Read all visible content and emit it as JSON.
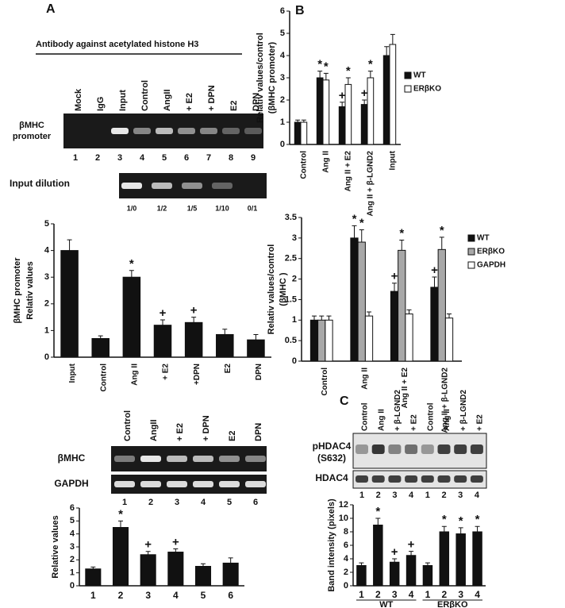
{
  "figure": {
    "panel_labels": [
      "A",
      "B",
      "C"
    ],
    "a_heading": "Antibody against acetylated histone H3",
    "a_chip": {
      "lanes": [
        "Mock",
        "IgG",
        "Input",
        "Control",
        "AngII",
        "+ E2",
        "+ DPN",
        "E2",
        "DPN"
      ],
      "row_label": [
        "βMHC",
        "promoter"
      ],
      "lane_numbers": [
        1,
        2,
        3,
        4,
        5,
        6,
        7,
        8,
        9
      ]
    },
    "a_input": {
      "row_label": "Input dilution",
      "dilutions": [
        "1/0",
        "1/2",
        "1/5",
        "1/10",
        "0/1"
      ]
    },
    "a_rt": {
      "lanes": [
        "Control",
        "AngII",
        "+ E2",
        "+ DPN",
        "E2",
        "DPN"
      ],
      "rows": [
        "βMHC",
        "GAPDH"
      ],
      "lane_numbers": [
        1,
        2,
        3,
        4,
        5,
        6
      ]
    },
    "c_blot": {
      "lanes": [
        "Control",
        "Ang II",
        "+ β-LGND2",
        "+ E2",
        "Control",
        "Ang II",
        "+ β-LGND2",
        "+ E2"
      ],
      "rows": [
        [
          "pHDAC4",
          "(S632)"
        ],
        "HDAC4"
      ],
      "lane_numbers": [
        1,
        2,
        3,
        4,
        1,
        2,
        3,
        4
      ]
    }
  },
  "chart_data": [
    {
      "type": "bar",
      "ylabel": [
        "βMHC promoter",
        "Relativ values"
      ],
      "categories": [
        "Input",
        "Control",
        "Ang II",
        "+ E2",
        "+DPN",
        "E2",
        "DPN"
      ],
      "series": [
        {
          "color": "#111111",
          "values": [
            4.0,
            0.7,
            3.0,
            1.2,
            1.3,
            0.85,
            0.65
          ],
          "errors": [
            0.4,
            0.1,
            0.25,
            0.2,
            0.2,
            0.2,
            0.2
          ],
          "markers": [
            null,
            null,
            "*",
            "+",
            "+",
            null,
            null
          ]
        }
      ],
      "ylim": [
        0,
        5
      ],
      "yticks": [
        0,
        1,
        2,
        3,
        4,
        5
      ]
    },
    {
      "type": "bar",
      "ylabel": [
        "Relative values"
      ],
      "categories": [
        "1",
        "2",
        "3",
        "4",
        "5",
        "6"
      ],
      "series": [
        {
          "color": "#111111",
          "values": [
            1.3,
            4.5,
            2.4,
            2.6,
            1.5,
            1.75
          ],
          "errors": [
            0.15,
            0.5,
            0.25,
            0.25,
            0.2,
            0.4
          ],
          "markers": [
            null,
            "*",
            "+",
            "+",
            null,
            null
          ]
        }
      ],
      "ylim": [
        0,
        6
      ],
      "yticks": [
        0,
        1,
        2,
        3,
        4,
        5,
        6
      ]
    },
    {
      "type": "bar",
      "ylabel": [
        "Relativ values/control",
        "(βMHC promoter)"
      ],
      "categories": [
        "Control",
        "Ang II",
        "Ang II + E2",
        "Ang II + β-LGND2",
        "Input"
      ],
      "series": [
        {
          "name": "WT",
          "color": "#111111",
          "values": [
            1.0,
            3.0,
            1.7,
            1.8,
            4.0
          ],
          "errors": [
            0.1,
            0.3,
            0.2,
            0.2,
            0.4
          ],
          "markers": [
            null,
            "*",
            "+",
            "+",
            null
          ]
        },
        {
          "name": "ERβKO",
          "color": "#ffffff",
          "values": [
            1.0,
            2.9,
            2.7,
            3.0,
            4.5
          ],
          "errors": [
            0.1,
            0.3,
            0.3,
            0.3,
            0.45
          ],
          "markers": [
            null,
            "*",
            "*",
            "*",
            null
          ]
        }
      ],
      "ylim": [
        0,
        6
      ],
      "yticks": [
        0,
        1,
        2,
        3,
        4,
        5,
        6
      ]
    },
    {
      "type": "bar",
      "ylabel": [
        "Relativ values/control",
        "(βMHC )"
      ],
      "categories": [
        "Control",
        "Ang II",
        "Ang II + E2",
        "Ang II + β-LGND2"
      ],
      "series": [
        {
          "name": "WT",
          "color": "#111111",
          "values": [
            1.0,
            3.0,
            1.7,
            1.8
          ],
          "errors": [
            0.1,
            0.3,
            0.2,
            0.25
          ],
          "markers": [
            null,
            "*",
            "+",
            "+"
          ]
        },
        {
          "name": "ERβKO",
          "color": "#a8a8a8",
          "values": [
            1.0,
            2.9,
            2.7,
            2.72
          ],
          "errors": [
            0.1,
            0.3,
            0.25,
            0.3
          ],
          "markers": [
            null,
            "*",
            "*",
            "*"
          ]
        },
        {
          "name": "GAPDH",
          "color": "#ffffff",
          "values": [
            1.0,
            1.1,
            1.15,
            1.05
          ],
          "errors": [
            0.1,
            0.1,
            0.1,
            0.1
          ],
          "markers": [
            null,
            null,
            null,
            null
          ]
        }
      ],
      "ylim": [
        0,
        3.5
      ],
      "yticks": [
        0,
        0.5,
        1,
        1.5,
        2,
        2.5,
        3,
        3.5
      ]
    },
    {
      "type": "bar",
      "ylabel": [
        "Band intensity (pixels)"
      ],
      "categories": [
        "1",
        "2",
        "3",
        "4",
        "1",
        "2",
        "3",
        "4"
      ],
      "group_labels": [
        "WT",
        "ERβKO"
      ],
      "series": [
        {
          "color": "#111111",
          "values": [
            3.0,
            9.0,
            3.5,
            4.5,
            3.0,
            8.0,
            7.7,
            8.0
          ],
          "errors": [
            0.4,
            1.0,
            0.5,
            0.6,
            0.4,
            0.8,
            0.9,
            0.8
          ],
          "markers": [
            null,
            "*",
            "+",
            "+",
            null,
            "*",
            "*",
            "*"
          ]
        }
      ],
      "ylim": [
        0,
        12
      ],
      "yticks": [
        0,
        2,
        4,
        6,
        8,
        10,
        12
      ]
    }
  ]
}
